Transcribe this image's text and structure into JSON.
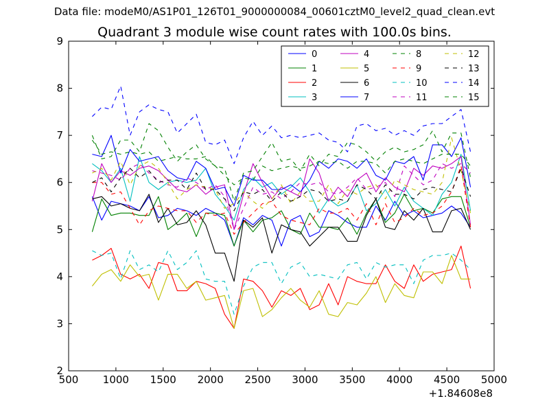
{
  "suptitle": "Data file: modeM0/AS1P01_126T01_9000000084_00601cztM0_level2_quad_clean.evt",
  "chart_data": {
    "type": "line",
    "title": "Quadrant 3 module wise count rates with 100.0s bins.",
    "xlabel": "",
    "ylabel": "",
    "x_offset_label": "+1.84608e8",
    "xlim": [
      500,
      5000
    ],
    "ylim": [
      2,
      9
    ],
    "xticks": [
      500,
      1000,
      1500,
      2000,
      2500,
      3000,
      3500,
      4000,
      4500,
      5000
    ],
    "yticks": [
      2,
      3,
      4,
      5,
      6,
      7,
      8,
      9
    ],
    "grid": false,
    "legend_position": "top-right",
    "legend_columns": 4,
    "x": [
      750,
      850,
      950,
      1050,
      1150,
      1250,
      1350,
      1450,
      1550,
      1650,
      1750,
      1850,
      1950,
      2050,
      2150,
      2250,
      2350,
      2450,
      2550,
      2650,
      2750,
      2850,
      2950,
      3050,
      3150,
      3250,
      3350,
      3450,
      3550,
      3650,
      3750,
      3850,
      3950,
      4050,
      4150,
      4250,
      4350,
      4450,
      4550,
      4650,
      4750
    ],
    "series": [
      {
        "name": "0",
        "color": "#0000ff",
        "style": "solid",
        "values": [
          5.7,
          5.2,
          5.6,
          5.55,
          5.5,
          5.4,
          5.7,
          5.25,
          5.3,
          5.45,
          5.4,
          5.3,
          5.45,
          5.35,
          5.2,
          4.65,
          5.25,
          5.1,
          5.3,
          5.2,
          4.65,
          5.2,
          5.3,
          4.85,
          4.95,
          5.4,
          5.3,
          5.15,
          5.05,
          5.05,
          5.5,
          5.2,
          5.6,
          5.3,
          5.4,
          5.25,
          5.3,
          5.35,
          5.5,
          5.35,
          5.05
        ]
      },
      {
        "name": "1",
        "color": "#008000",
        "style": "solid",
        "values": [
          4.95,
          5.65,
          5.3,
          5.35,
          5.35,
          5.3,
          5.3,
          5.7,
          5.0,
          5.15,
          5.35,
          4.85,
          5.35,
          5.35,
          5.3,
          4.65,
          5.2,
          4.95,
          5.2,
          5.25,
          5.4,
          5.0,
          4.9,
          5.35,
          5.05,
          5.05,
          5.0,
          5.25,
          4.9,
          5.35,
          5.65,
          5.15,
          5.35,
          5.75,
          5.4,
          5.45,
          5.35,
          5.65,
          5.7,
          5.7,
          5.05
        ]
      },
      {
        "name": "2",
        "color": "#ff0000",
        "style": "solid",
        "values": [
          4.35,
          4.45,
          4.6,
          4.05,
          3.95,
          4.05,
          3.75,
          4.3,
          4.25,
          3.7,
          3.7,
          3.9,
          3.85,
          3.75,
          3.2,
          2.9,
          3.95,
          3.9,
          3.7,
          3.35,
          3.7,
          3.6,
          3.75,
          3.3,
          3.4,
          3.85,
          3.4,
          4.0,
          3.9,
          3.85,
          3.85,
          4.25,
          3.9,
          3.75,
          4.25,
          3.9,
          4.05,
          4.1,
          4.15,
          4.65,
          3.75
        ]
      },
      {
        "name": "3",
        "color": "#00bfbf",
        "style": "solid",
        "values": [
          6.4,
          6.25,
          6.0,
          6.3,
          5.6,
          6.55,
          6.0,
          5.85,
          6.0,
          6.05,
          6.0,
          6.05,
          6.3,
          5.75,
          5.5,
          5.2,
          5.85,
          6.1,
          5.9,
          6.0,
          5.75,
          5.9,
          6.1,
          5.8,
          5.35,
          5.65,
          5.5,
          5.6,
          5.95,
          5.4,
          5.55,
          5.85,
          5.5,
          5.9,
          5.6,
          5.45,
          5.3,
          5.75,
          6.0,
          6.6,
          5.4
        ]
      },
      {
        "name": "4",
        "color": "#bf00bf",
        "style": "solid",
        "values": [
          5.6,
          6.4,
          6.0,
          6.25,
          6.15,
          6.3,
          6.35,
          6.25,
          6.05,
          5.85,
          5.8,
          5.95,
          5.75,
          5.9,
          5.95,
          5.0,
          5.75,
          6.4,
          6.0,
          5.65,
          5.9,
          5.8,
          5.7,
          6.5,
          6.2,
          5.6,
          5.9,
          5.7,
          6.05,
          6.2,
          5.8,
          6.1,
          5.9,
          5.8,
          6.3,
          6.15,
          6.35,
          6.3,
          6.4,
          6.55,
          5.1
        ]
      },
      {
        "name": "5",
        "color": "#bfbf00",
        "style": "solid",
        "values": [
          3.8,
          4.05,
          4.15,
          3.9,
          4.25,
          4.0,
          4.05,
          3.5,
          4.05,
          4.05,
          3.75,
          3.9,
          3.5,
          3.55,
          3.6,
          2.9,
          3.7,
          3.75,
          3.15,
          3.3,
          3.55,
          3.75,
          3.5,
          3.35,
          3.7,
          3.2,
          3.15,
          3.45,
          3.4,
          3.65,
          4.0,
          3.45,
          3.85,
          3.6,
          3.55,
          4.1,
          4.1,
          3.85,
          4.45,
          3.95,
          3.95
        ]
      },
      {
        "name": "6",
        "color": "#000000",
        "style": "solid",
        "values": [
          5.65,
          5.7,
          5.5,
          5.55,
          5.45,
          5.4,
          5.75,
          5.15,
          5.45,
          5.1,
          5.15,
          5.4,
          5.1,
          4.5,
          4.5,
          3.9,
          5.2,
          5.05,
          5.25,
          4.5,
          5.1,
          5.0,
          4.95,
          4.65,
          4.85,
          5.05,
          5.05,
          4.75,
          4.75,
          5.3,
          5.65,
          5.05,
          5.0,
          5.4,
          5.2,
          5.45,
          4.95,
          4.95,
          5.4,
          5.45,
          5.0
        ]
      },
      {
        "name": "7",
        "color": "#0000ff",
        "style": "solid",
        "values": [
          6.6,
          6.55,
          7.0,
          6.2,
          6.7,
          6.45,
          6.5,
          6.55,
          6.25,
          6.1,
          6.05,
          6.45,
          6.3,
          5.85,
          5.9,
          5.5,
          6.15,
          6.05,
          6.05,
          5.85,
          5.85,
          5.95,
          5.8,
          6.05,
          6.45,
          6.3,
          6.5,
          6.45,
          6.3,
          6.5,
          6.15,
          6.05,
          6.45,
          6.4,
          6.55,
          6.05,
          6.8,
          6.8,
          6.55,
          6.95,
          5.9
        ]
      },
      {
        "name": "8",
        "color": "#008000",
        "style": "dashed",
        "values": [
          7.0,
          6.5,
          6.55,
          6.9,
          6.9,
          6.65,
          7.25,
          7.1,
          6.75,
          6.45,
          6.65,
          6.8,
          6.5,
          6.35,
          6.3,
          5.6,
          6.2,
          6.25,
          6.55,
          6.85,
          6.45,
          6.5,
          6.25,
          6.6,
          6.35,
          6.6,
          6.55,
          6.85,
          6.8,
          6.65,
          6.45,
          6.65,
          6.75,
          6.65,
          6.7,
          6.8,
          7.1,
          6.65,
          7.05,
          7.05,
          6.1
        ]
      },
      {
        "name": "9",
        "color": "#ff0000",
        "style": "dashed",
        "values": [
          6.0,
          6.0,
          5.75,
          5.8,
          5.45,
          5.1,
          5.4,
          5.5,
          5.45,
          5.4,
          5.4,
          5.15,
          5.35,
          5.3,
          5.35,
          4.9,
          5.15,
          5.35,
          5.55,
          5.6,
          5.3,
          5.2,
          5.15,
          5.1,
          5.45,
          5.35,
          5.35,
          5.45,
          5.2,
          5.55,
          5.1,
          5.55,
          5.15,
          5.25,
          5.45,
          5.3,
          5.35,
          5.5,
          5.8,
          6.35,
          5.05
        ]
      },
      {
        "name": "10",
        "color": "#00bfbf",
        "style": "dashed",
        "values": [
          4.55,
          4.45,
          4.5,
          3.95,
          4.55,
          4.15,
          4.25,
          4.1,
          4.55,
          4.15,
          4.3,
          4.55,
          3.95,
          3.9,
          3.9,
          3.2,
          3.8,
          4.2,
          4.3,
          4.3,
          3.85,
          4.2,
          4.3,
          4.0,
          4.05,
          4.0,
          3.95,
          4.25,
          4.3,
          3.95,
          4.3,
          4.2,
          4.25,
          4.25,
          3.85,
          4.35,
          4.45,
          4.45,
          4.5,
          4.35,
          4.15
        ]
      },
      {
        "name": "11",
        "color": "#bf00bf",
        "style": "dashed",
        "values": [
          6.25,
          6.2,
          6.15,
          6.05,
          6.3,
          6.4,
          6.2,
          6.05,
          5.95,
          5.9,
          6.1,
          6.0,
          5.85,
          5.95,
          5.7,
          5.0,
          5.45,
          5.9,
          5.75,
          5.8,
          5.65,
          5.8,
          6.0,
          5.95,
          6.0,
          5.8,
          5.75,
          5.9,
          6.1,
          5.85,
          5.9,
          6.0,
          5.7,
          6.35,
          6.15,
          5.95,
          6.05,
          6.4,
          6.3,
          6.4,
          6.2
        ]
      },
      {
        "name": "12",
        "color": "#bfbf00",
        "style": "dashed",
        "values": [
          6.2,
          6.3,
          6.05,
          6.45,
          5.95,
          6.35,
          6.45,
          6.3,
          6.0,
          5.65,
          5.85,
          5.95,
          5.9,
          5.85,
          5.45,
          5.55,
          5.8,
          5.6,
          5.45,
          5.65,
          5.95,
          5.55,
          5.8,
          5.6,
          5.6,
          5.95,
          5.55,
          5.85,
          5.75,
          5.9,
          5.95,
          5.65,
          6.05,
          5.95,
          5.85,
          5.8,
          5.75,
          6.0,
          6.95,
          6.25,
          5.35
        ]
      },
      {
        "name": "13",
        "color": "#000000",
        "style": "dashed",
        "values": [
          6.0,
          6.1,
          5.8,
          6.1,
          6.3,
          6.1,
          6.25,
          6.0,
          6.05,
          6.05,
          5.85,
          6.2,
          5.85,
          5.85,
          5.65,
          5.4,
          5.8,
          5.75,
          5.85,
          5.6,
          5.8,
          5.6,
          5.7,
          5.85,
          5.8,
          5.6,
          5.65,
          5.6,
          5.95,
          5.85,
          5.65,
          5.95,
          5.75,
          5.75,
          5.65,
          5.85,
          5.9,
          5.85,
          5.8,
          6.3,
          5.7
        ]
      },
      {
        "name": "14",
        "color": "#0000ff",
        "style": "dashed",
        "values": [
          7.4,
          7.6,
          7.55,
          8.05,
          7.0,
          7.5,
          7.65,
          7.55,
          7.5,
          7.05,
          7.25,
          7.45,
          6.85,
          6.8,
          6.9,
          6.4,
          6.95,
          7.3,
          7.0,
          7.2,
          6.95,
          7.0,
          6.95,
          7.0,
          7.05,
          6.9,
          6.85,
          6.65,
          7.2,
          7.25,
          7.1,
          7.15,
          7.0,
          7.1,
          7.0,
          7.2,
          7.25,
          7.25,
          7.4,
          7.55,
          6.65
        ]
      },
      {
        "name": "15",
        "color": "#008000",
        "style": "dashed",
        "values": [
          6.9,
          6.6,
          6.65,
          6.6,
          6.65,
          6.6,
          6.65,
          6.45,
          6.5,
          6.55,
          6.5,
          6.5,
          6.55,
          6.35,
          6.15,
          5.95,
          6.1,
          6.05,
          6.35,
          6.25,
          6.3,
          6.35,
          6.3,
          6.35,
          6.45,
          6.4,
          6.45,
          6.3,
          6.45,
          6.45,
          6.4,
          6.2,
          6.45,
          6.5,
          6.45,
          6.4,
          6.5,
          6.6,
          6.6,
          6.6,
          6.35
        ]
      }
    ]
  }
}
